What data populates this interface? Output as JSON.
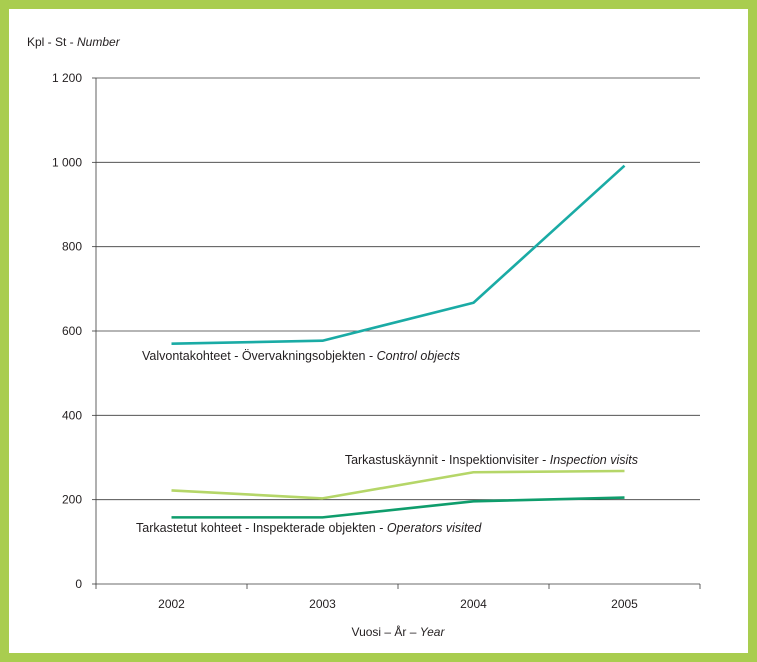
{
  "chart_data": {
    "type": "line",
    "ylabel": {
      "plain": "Kpl - St - ",
      "italic": "Number"
    },
    "xlabel": {
      "plain": "Vuosi – År – ",
      "italic": "Year"
    },
    "categories": [
      "2002",
      "2003",
      "2004",
      "2005"
    ],
    "ylim": [
      0,
      1200
    ],
    "yticks": [
      0,
      200,
      400,
      600,
      800,
      1000,
      1200
    ],
    "ytick_labels": [
      "0",
      "200",
      "400",
      "600",
      "800",
      "1 000",
      "1 200"
    ],
    "grid": true,
    "series": [
      {
        "label_plain": "Valvontakohteet - Övervakningsobjekten - ",
        "label_italic": "Control objects",
        "color": "#1aaba5",
        "values": [
          570,
          577,
          667,
          992
        ]
      },
      {
        "label_plain": "Tarkastuskäynnit - Inspektionvisiter - ",
        "label_italic": "Inspection visits",
        "color": "#b5d668",
        "values": [
          222,
          203,
          265,
          268
        ]
      },
      {
        "label_plain": "Tarkastetut kohteet - Inspekterade objekten - ",
        "label_italic": "Operators visited",
        "color": "#0f9d6c",
        "values": [
          158,
          158,
          196,
          205
        ]
      }
    ]
  }
}
